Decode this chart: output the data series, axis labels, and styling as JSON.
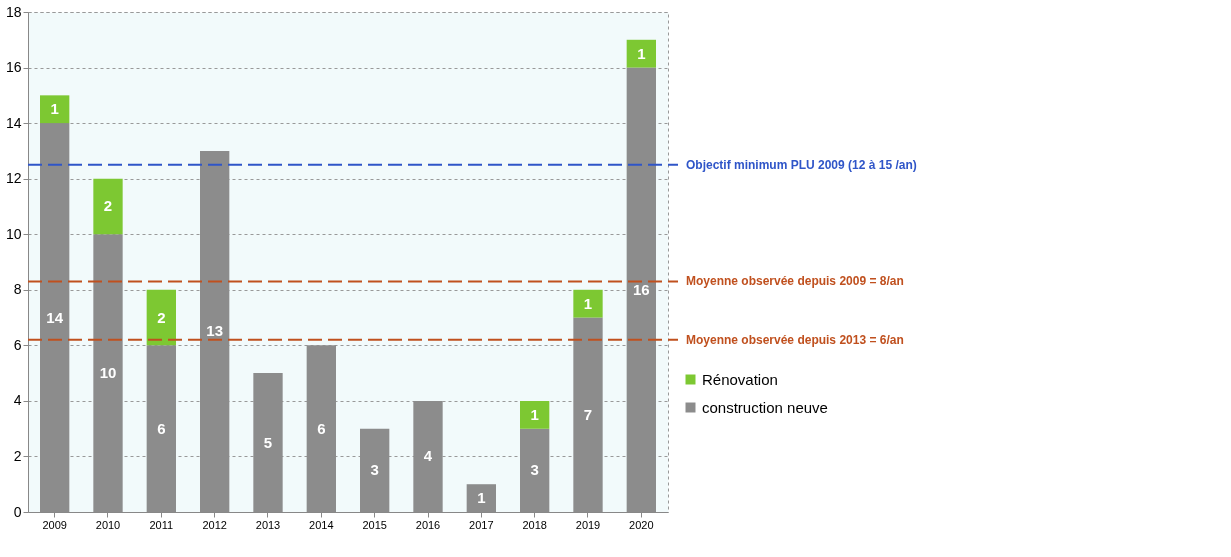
{
  "chart_data": {
    "type": "bar",
    "stacked": true,
    "categories": [
      "2009",
      "2010",
      "2011",
      "2012",
      "2013",
      "2014",
      "2015",
      "2016",
      "2017",
      "2018",
      "2019",
      "2020"
    ],
    "series": [
      {
        "name": "construction neuve",
        "color": "#8c8c8c",
        "values": [
          14,
          10,
          6,
          13,
          5,
          6,
          3,
          4,
          1,
          3,
          7,
          16
        ],
        "value_labels": [
          "14",
          "10",
          "6",
          "13",
          "5",
          "6",
          "3",
          "4",
          "1",
          "3",
          "7",
          "16"
        ]
      },
      {
        "name": "Rénovation",
        "color": "#7dc832",
        "values": [
          1,
          2,
          2,
          0,
          0,
          0,
          0,
          0,
          0,
          1,
          1,
          1
        ],
        "value_labels": [
          "1",
          "2",
          "2",
          null,
          null,
          null,
          null,
          null,
          null,
          "1",
          "1",
          "1"
        ]
      }
    ],
    "ylim": [
      0,
      18
    ],
    "yticks": [
      0,
      2,
      4,
      6,
      8,
      10,
      12,
      14,
      16,
      18
    ],
    "grid": "y",
    "legend": "right",
    "ref_lines": [
      {
        "axis": "y",
        "value": 12.5,
        "label": "Objectif minimum PLU 2009 (12 à 15 /an)",
        "color": "#2f55c8",
        "line_style": "dashed"
      },
      {
        "axis": "y",
        "value": 8.3,
        "label": "Moyenne observée depuis 2009 = 8/an",
        "color": "#c0501e",
        "line_style": "dashed"
      },
      {
        "axis": "y",
        "value": 6.2,
        "label": "Moyenne observée depuis 2013 = 6/an",
        "color": "#c0501e",
        "line_style": "dashed"
      }
    ]
  }
}
